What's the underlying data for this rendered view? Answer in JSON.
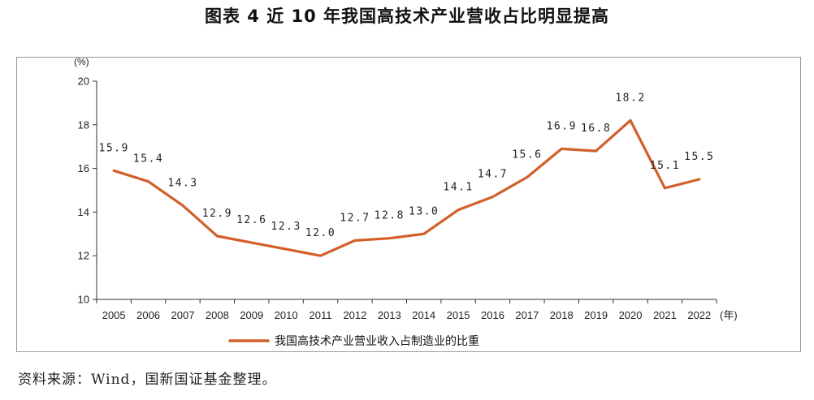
{
  "title": "图表 4 近 10 年我国高技术产业营收占比明显提高",
  "source": "资料来源：Wind，国新国证基金整理。",
  "colors": {
    "line": "#d35f2a",
    "axis": "#333333",
    "frame": "#9a9a9a"
  },
  "chart_data": {
    "type": "line",
    "categories": [
      "2005",
      "2006",
      "2007",
      "2008",
      "2009",
      "2010",
      "2011",
      "2012",
      "2013",
      "2014",
      "2015",
      "2016",
      "2017",
      "2018",
      "2019",
      "2020",
      "2021",
      "2022"
    ],
    "series": [
      {
        "name": "我国高技术产业营业收入占制造业的比重",
        "values": [
          15.9,
          15.4,
          14.3,
          12.9,
          12.6,
          12.3,
          12.0,
          12.7,
          12.8,
          13.0,
          14.1,
          14.7,
          15.6,
          16.9,
          16.8,
          18.2,
          15.1,
          15.5
        ],
        "labels": [
          "15.9",
          "15.4",
          "14.3",
          "12.9",
          "12.6",
          "12.3",
          "12.0",
          "12.7",
          "12.8",
          "13.0",
          "14.1",
          "14.7",
          "15.6",
          "16.9",
          "16.8",
          "18.2",
          "15.1",
          "15.5"
        ]
      }
    ],
    "ylabel": "(%)",
    "xunit": "(年)",
    "ylim": [
      10,
      20
    ],
    "yticks": [
      "10",
      "12",
      "14",
      "16",
      "18",
      "20"
    ],
    "grid": false,
    "legend_position": "bottom-left"
  }
}
